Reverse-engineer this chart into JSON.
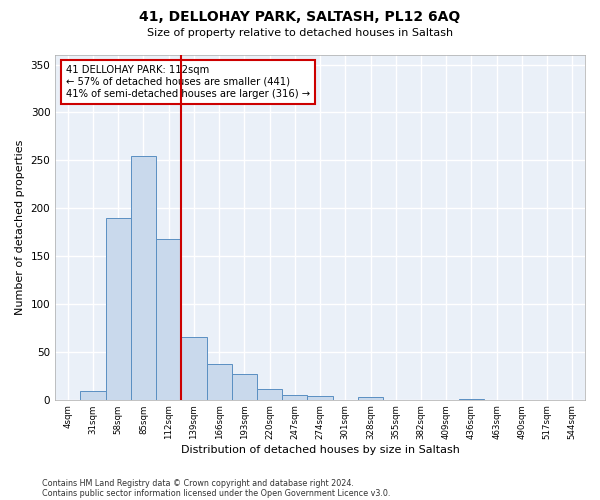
{
  "title": "41, DELLOHAY PARK, SALTASH, PL12 6AQ",
  "subtitle": "Size of property relative to detached houses in Saltash",
  "xlabel": "Distribution of detached houses by size in Saltash",
  "ylabel": "Number of detached properties",
  "bar_labels": [
    "4sqm",
    "31sqm",
    "58sqm",
    "85sqm",
    "112sqm",
    "139sqm",
    "166sqm",
    "193sqm",
    "220sqm",
    "247sqm",
    "274sqm",
    "301sqm",
    "328sqm",
    "355sqm",
    "382sqm",
    "409sqm",
    "436sqm",
    "463sqm",
    "490sqm",
    "517sqm",
    "544sqm"
  ],
  "bar_values": [
    0,
    9,
    190,
    255,
    168,
    65,
    37,
    27,
    11,
    5,
    4,
    0,
    3,
    0,
    0,
    0,
    1,
    0,
    0,
    0,
    0
  ],
  "bar_color": "#c9d9ec",
  "bar_edge_color": "#5a8fc2",
  "background_color": "#eaf0f8",
  "grid_color": "#ffffff",
  "vline_x": 4.5,
  "vline_color": "#cc0000",
  "annotation_title": "41 DELLOHAY PARK: 112sqm",
  "annotation_line1": "← 57% of detached houses are smaller (441)",
  "annotation_line2": "41% of semi-detached houses are larger (316) →",
  "annotation_box_color": "#ffffff",
  "annotation_box_edgecolor": "#cc0000",
  "ylim": [
    0,
    360
  ],
  "yticks": [
    0,
    50,
    100,
    150,
    200,
    250,
    300,
    350
  ],
  "footnote1": "Contains HM Land Registry data © Crown copyright and database right 2024.",
  "footnote2": "Contains public sector information licensed under the Open Government Licence v3.0."
}
